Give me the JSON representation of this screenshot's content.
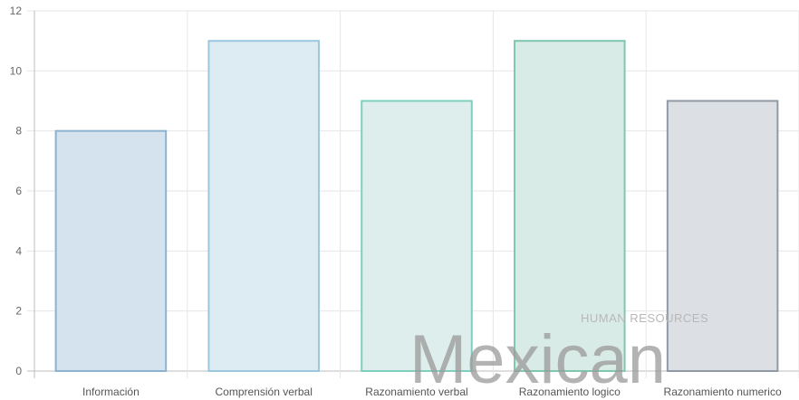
{
  "chart_data": {
    "type": "bar",
    "categories": [
      "Información",
      "Comprensión verbal",
      "Razonamiento verbal",
      "Razonamiento logico",
      "Razonamiento numerico"
    ],
    "values": [
      8,
      11,
      9,
      11,
      9
    ],
    "title": "",
    "xlabel": "",
    "ylabel": "",
    "ylim": [
      0,
      12
    ],
    "yticks": [
      0,
      2,
      4,
      6,
      8,
      10,
      12
    ],
    "grid": true,
    "bar_fills": [
      "#d5e3ee",
      "#ddebf3",
      "#ddeeed",
      "#d9ebe6",
      "#dcdfe3"
    ],
    "bar_strokes": [
      "#8bb3d1",
      "#9cc8df",
      "#7fcfbf",
      "#7ec7b1",
      "#8f9aa6"
    ]
  },
  "watermark": {
    "small": "HUMAN RESOURCES",
    "big": "Mexican"
  }
}
